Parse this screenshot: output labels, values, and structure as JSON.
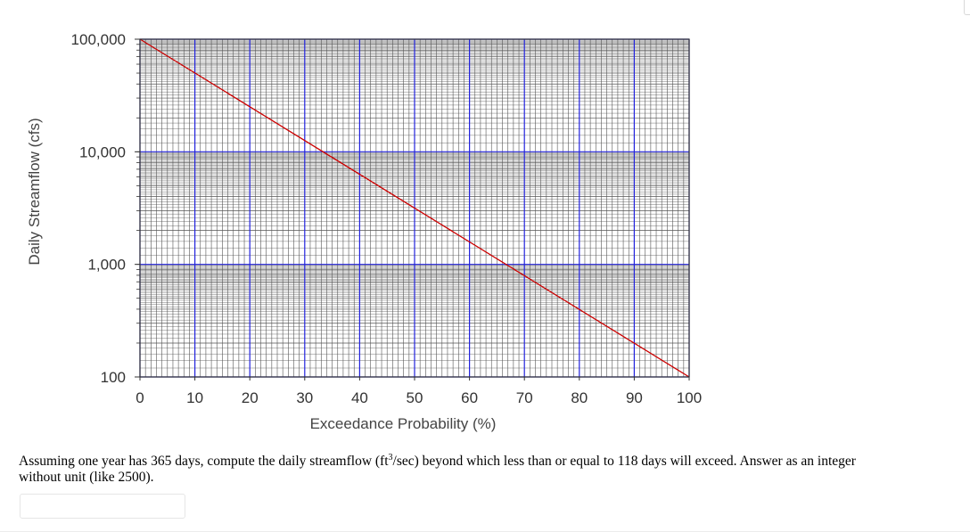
{
  "chart_data": {
    "type": "line",
    "xlabel": "Exceedance Probability (%)",
    "ylabel": "Daily Streamflow (cfs)",
    "xlim": [
      0,
      100
    ],
    "ylim": [
      100,
      100000
    ],
    "y_scale": "log",
    "grid": true,
    "x_ticks": [
      0,
      10,
      20,
      30,
      40,
      50,
      60,
      70,
      80,
      90,
      100
    ],
    "x_tick_labels": [
      "0",
      "10",
      "20",
      "30",
      "40",
      "50",
      "60",
      "70",
      "80",
      "90",
      "100"
    ],
    "y_ticks": [
      100,
      1000,
      10000,
      100000
    ],
    "y_tick_labels": [
      "100",
      "1,000",
      "10,000",
      "100,000"
    ],
    "series": [
      {
        "color": "#cc0000",
        "x": [
          0,
          100
        ],
        "y": [
          100000,
          100
        ]
      }
    ],
    "colors": {
      "minor_grid": "#555555",
      "major_grid": "#2222dd",
      "line": "#cc0000"
    }
  },
  "question": {
    "prefix": "Assuming one year has 365 days, compute the daily streamflow (ft",
    "superscript": "3",
    "suffix": "/sec) beyond which less than or equal to 118 days will exceed. Answer as an integer without unit (like 2500)."
  },
  "answer": {
    "value": "",
    "placeholder": ""
  }
}
